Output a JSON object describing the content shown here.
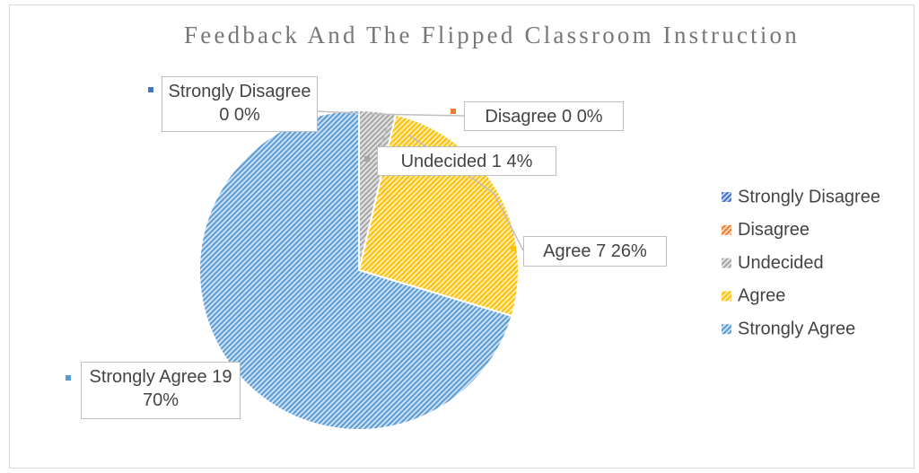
{
  "chart_data": {
    "type": "pie",
    "title": "Feedback And The Flipped Classroom Instruction",
    "categories": [
      "Strongly Disagree",
      "Disagree",
      "Undecided",
      "Agree",
      "Strongly Agree"
    ],
    "values": [
      0,
      0,
      1,
      7,
      19
    ],
    "percent_labels": [
      "0%",
      "0%",
      "4%",
      "26%",
      "70%"
    ],
    "colors": [
      "#4472c4",
      "#ed7d31",
      "#a5a5a5",
      "#ffc000",
      "#5b9bd5"
    ],
    "legend": "right"
  }
}
